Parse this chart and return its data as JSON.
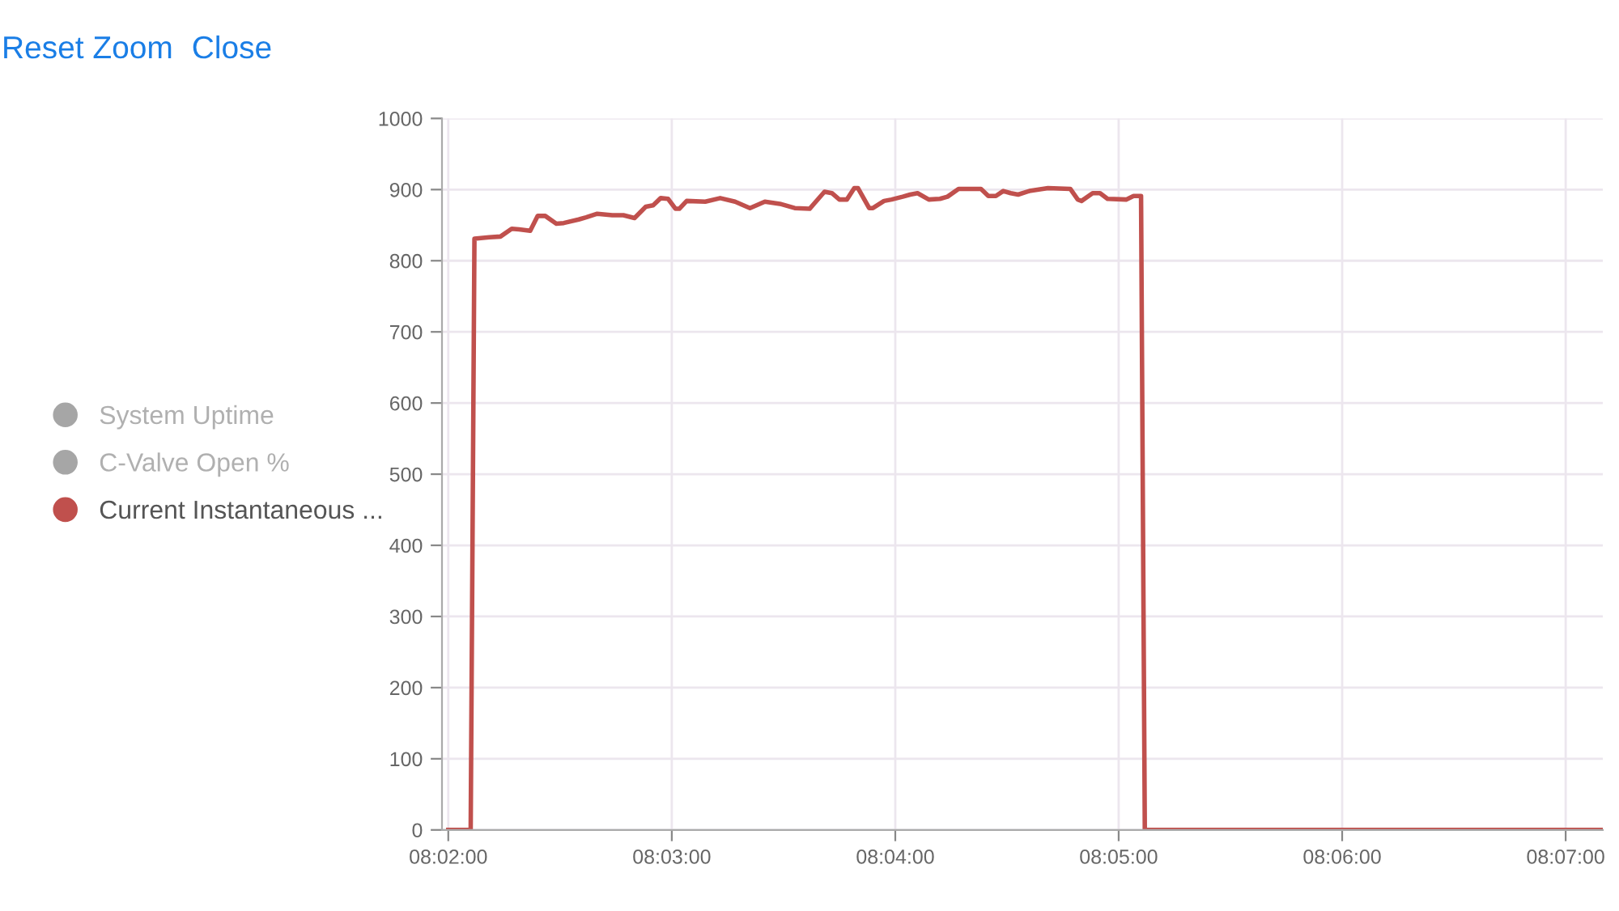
{
  "chart_data": {
    "type": "line",
    "annotations": [
      "Reset Zoom",
      "Close"
    ],
    "x": [
      8.03333,
      8.035,
      8.03528,
      8.03639,
      8.03722,
      8.03806,
      8.03861,
      8.03944,
      8.04,
      8.04056,
      8.04139,
      8.04194,
      8.04306,
      8.04361,
      8.04444,
      8.04556,
      8.04639,
      8.04722,
      8.04806,
      8.04861,
      8.04917,
      8.04972,
      8.05028,
      8.05056,
      8.05111,
      8.0525,
      8.05361,
      8.05472,
      8.05583,
      8.05694,
      8.05806,
      8.05917,
      8.06028,
      8.06139,
      8.06194,
      8.0625,
      8.06306,
      8.06361,
      8.06389,
      8.06472,
      8.065,
      8.06583,
      8.06639,
      8.06722,
      8.06778,
      8.06833,
      8.06917,
      8.07,
      8.07056,
      8.07139,
      8.07306,
      8.07361,
      8.07417,
      8.07472,
      8.07528,
      8.07583,
      8.07667,
      8.07806,
      8.07972,
      8.08028,
      8.08056,
      8.08139,
      8.08194,
      8.0825,
      8.08389,
      8.08444,
      8.085,
      8.08528,
      8.11944
    ],
    "series": [
      {
        "name": "System Uptime",
        "color": "#a6a6a6",
        "values": [
          null,
          null,
          null,
          null,
          null,
          null,
          null,
          null,
          null,
          null,
          null,
          null,
          null,
          null,
          null,
          null,
          null,
          null,
          null,
          null,
          null,
          null,
          null,
          null,
          null,
          null,
          null,
          null,
          null,
          null,
          null,
          null,
          null,
          null,
          null,
          null,
          null,
          null,
          null,
          null,
          null,
          null,
          null,
          null,
          null,
          null,
          null,
          null,
          null,
          null,
          null,
          null,
          null,
          null,
          null,
          null,
          null,
          null,
          null,
          null,
          null,
          null,
          null,
          null,
          null,
          null,
          null,
          null,
          null
        ]
      },
      {
        "name": "C-Valve Open %",
        "color": "#a6a6a6",
        "values": [
          null,
          null,
          null,
          null,
          null,
          null,
          null,
          null,
          null,
          null,
          null,
          null,
          null,
          null,
          null,
          null,
          null,
          null,
          null,
          null,
          null,
          null,
          null,
          null,
          null,
          null,
          null,
          null,
          null,
          null,
          null,
          null,
          null,
          null,
          null,
          null,
          null,
          null,
          null,
          null,
          null,
          null,
          null,
          null,
          null,
          null,
          null,
          null,
          null,
          null,
          null,
          null,
          null,
          null,
          null,
          null,
          null,
          null,
          null,
          null,
          null,
          null,
          null,
          null,
          null,
          null,
          null,
          null,
          null
        ]
      },
      {
        "name": "Current Instantaneous ...",
        "color": "#c0504d",
        "values": [
          0,
          0,
          831,
          833,
          834,
          845,
          844,
          842,
          863,
          863,
          852,
          853,
          858,
          861,
          866,
          864,
          864,
          860,
          876,
          878,
          888,
          887,
          873,
          873,
          884,
          883,
          888,
          883,
          874,
          883,
          880,
          874,
          873,
          897,
          895,
          886,
          886,
          902,
          902,
          874,
          874,
          884,
          886,
          890,
          893,
          895,
          886,
          887,
          890,
          901,
          901,
          891,
          891,
          898,
          895,
          893,
          898,
          902,
          901,
          886,
          884,
          895,
          895,
          887,
          886,
          891,
          891,
          0,
          0
        ]
      }
    ],
    "xlim": [
      8.03286,
      8.11944
    ],
    "xticks": [
      {
        "value": 8.03333,
        "label": "08:02:00"
      },
      {
        "value": 8.05,
        "label": "08:03:00"
      },
      {
        "value": 8.06667,
        "label": "08:04:00"
      },
      {
        "value": 8.08333,
        "label": "08:05:00"
      },
      {
        "value": 8.1,
        "label": "08:06:00"
      },
      {
        "value": 8.11667,
        "label": "08:07:00"
      }
    ],
    "ylim": [
      0,
      1000
    ],
    "yticks": [
      0,
      100,
      200,
      300,
      400,
      500,
      600,
      700,
      800,
      900,
      1000
    ],
    "grid": true,
    "legend": "left",
    "marker": "none",
    "line_style": "solid"
  }
}
